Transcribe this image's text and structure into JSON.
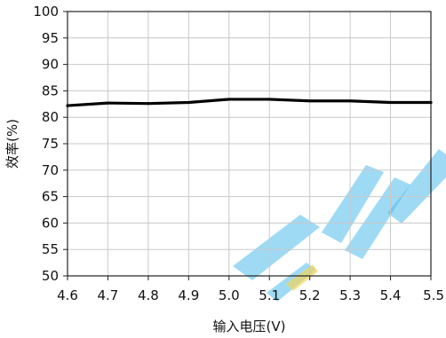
{
  "chart_data": {
    "type": "line",
    "title": "",
    "xlabel": "输入电压(V)",
    "ylabel": "效率(%)",
    "xlim": [
      4.6,
      5.5
    ],
    "ylim": [
      50,
      100
    ],
    "x_ticks": [
      "4.6",
      "4.7",
      "4.8",
      "4.9",
      "5.0",
      "5.1",
      "5.2",
      "5.3",
      "5.4",
      "5.5"
    ],
    "y_ticks": [
      "50",
      "55",
      "60",
      "65",
      "70",
      "75",
      "80",
      "85",
      "90",
      "95",
      "100"
    ],
    "grid": true,
    "legend": "none",
    "series": [
      {
        "x": [
          4.6,
          4.7,
          4.8,
          4.9,
          5.0,
          5.1,
          5.2,
          5.3,
          5.4,
          5.5
        ],
        "values": [
          82.2,
          82.7,
          82.6,
          82.8,
          83.4,
          83.4,
          83.1,
          83.1,
          82.8,
          82.8
        ],
        "color": "#000000"
      }
    ]
  },
  "watermark": {
    "text": "EVV",
    "colors": [
      "#3db4e8",
      "#f0d24a"
    ]
  }
}
